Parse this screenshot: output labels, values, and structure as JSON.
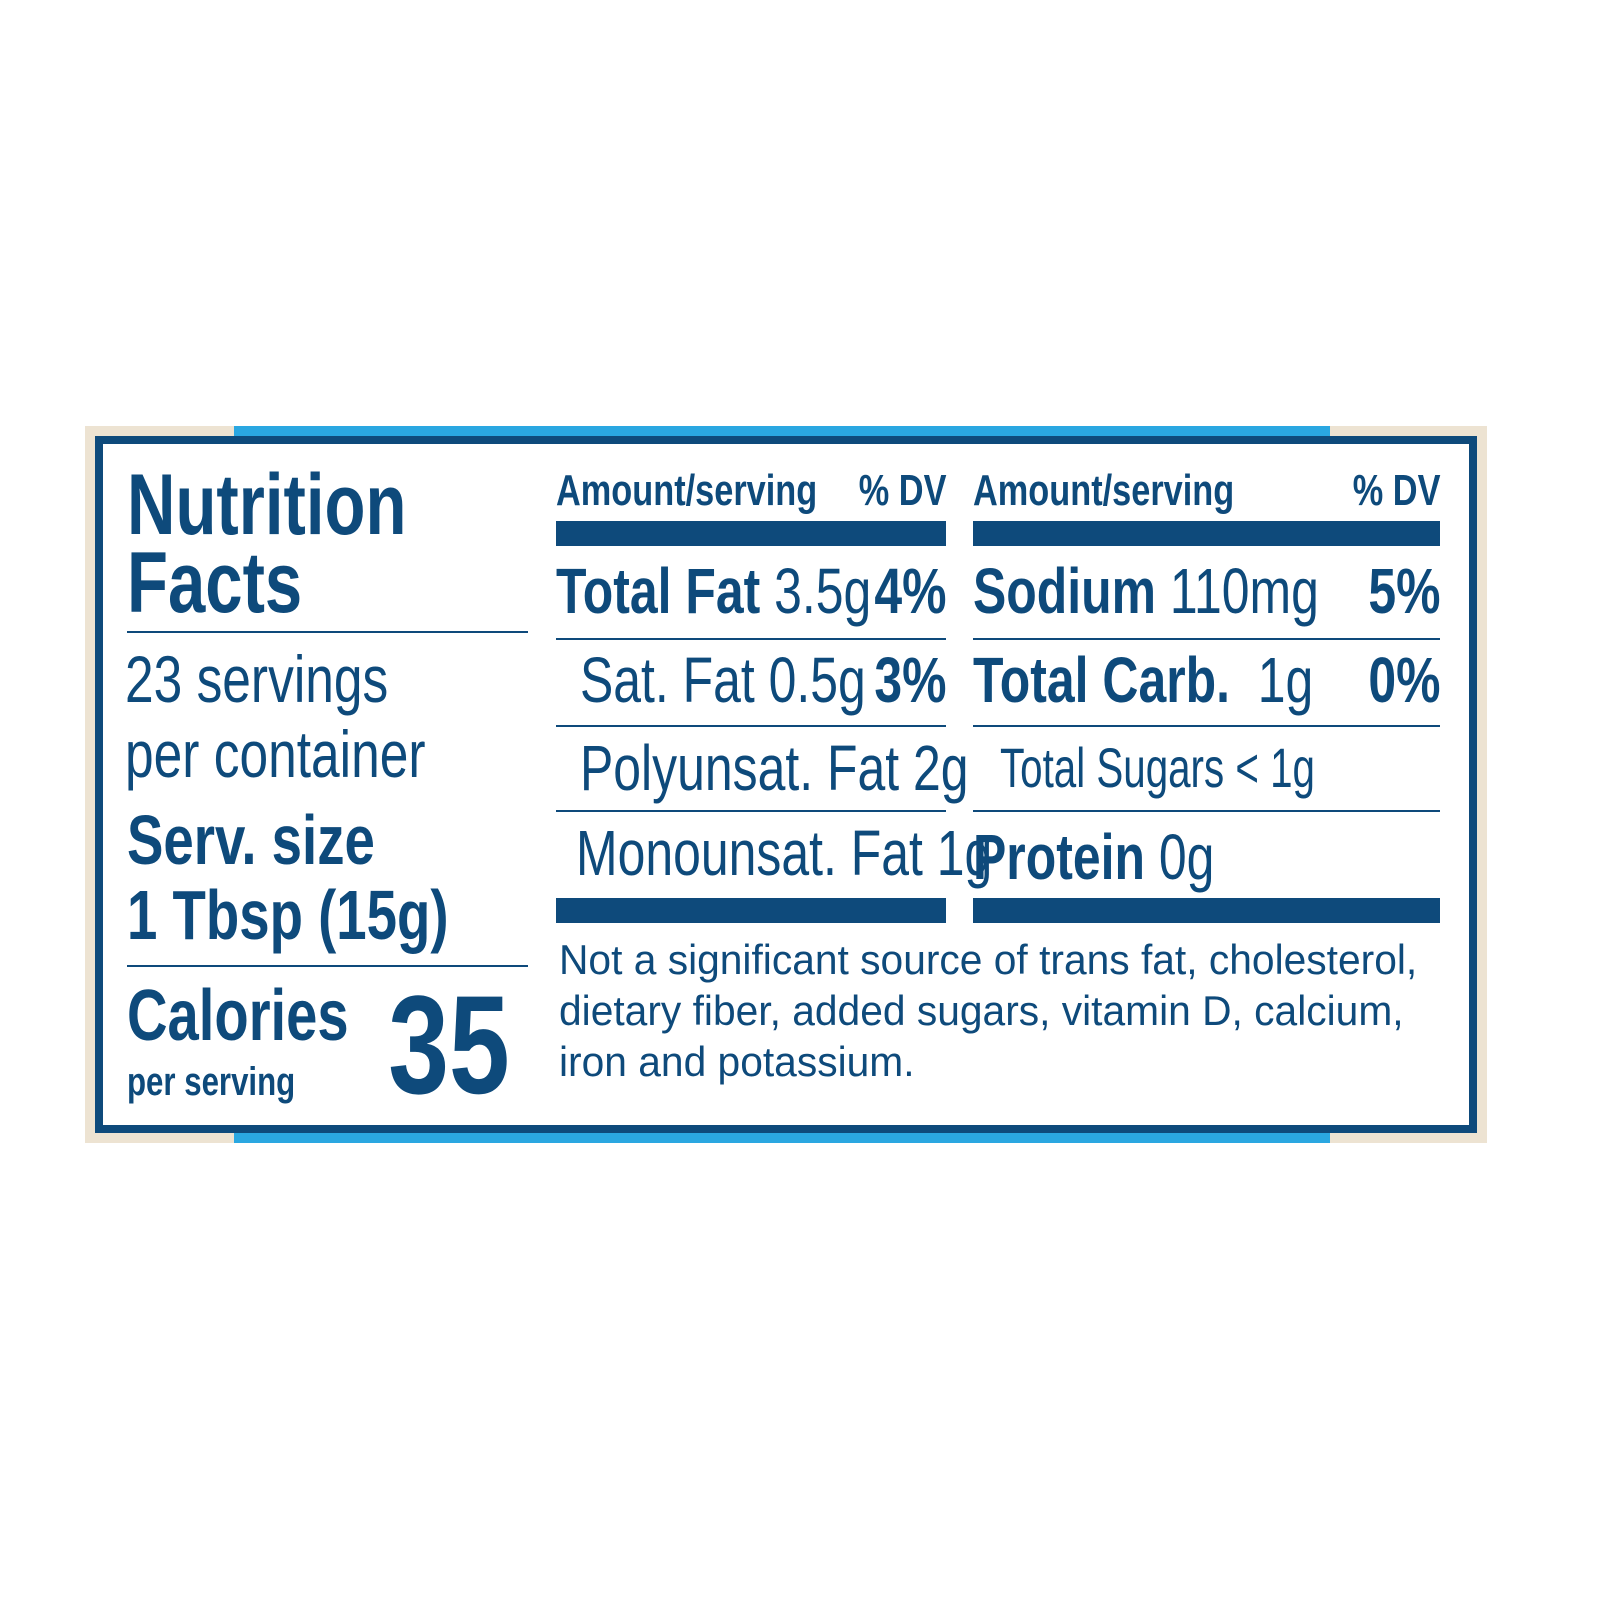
{
  "title_line1": "Nutrition",
  "title_line2": "Facts",
  "servings_line1": "23 servings",
  "servings_line2": "per container",
  "serv_size_label": "Serv. size",
  "serv_size_value": "1 Tbsp (15g)",
  "calories_label": "Calories",
  "calories_sub": "per serving",
  "calories_value": "35",
  "left_table": {
    "header_amount": "Amount/serving",
    "header_dv": "% DV",
    "rows": [
      {
        "name": "Total Fat",
        "amount": "3.5g",
        "dv": "4%"
      },
      {
        "name": "Sat. Fat 0.5g",
        "dv": "3%"
      },
      {
        "name": "Polyunsat. Fat 2g"
      },
      {
        "name": "Monounsat. Fat 1g"
      }
    ]
  },
  "right_table": {
    "header_amount": "Amount/serving",
    "header_dv": "% DV",
    "rows": [
      {
        "name": "Sodium",
        "amount": "110mg",
        "dv": "5%"
      },
      {
        "name": "Total Carb.",
        "amount": "1g",
        "dv": "0%"
      },
      {
        "name": "Total Sugars < 1g"
      },
      {
        "name": "Protein",
        "amount": "0g"
      }
    ]
  },
  "footnote": [
    "Not a significant source of trans fat, cholesterol,",
    "dietary fiber, added sugars, vitamin D, calcium,",
    "iron and potassium."
  ],
  "colors": {
    "ink": "#0e4a7b",
    "accent_blue": "#2aa7e1",
    "frame_beige": "#ede3d2"
  }
}
